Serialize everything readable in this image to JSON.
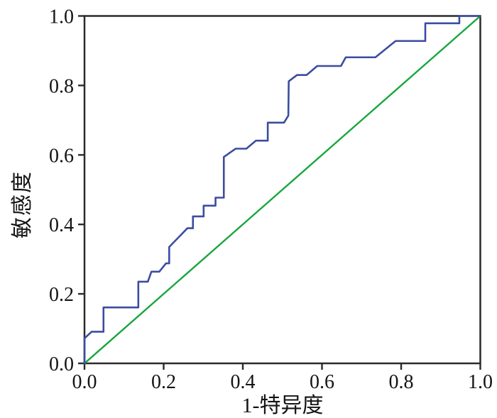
{
  "figure": {
    "background": "#ffffff",
    "axis_color": "#2a2a2c",
    "text_color": "#141414"
  },
  "chart_data": {
    "type": "line",
    "subtype": "roc-curve",
    "title": "",
    "xlabel": "1-特异度",
    "ylabel": "敏感度",
    "xlim": [
      0,
      1
    ],
    "ylim": [
      0,
      1
    ],
    "x_ticks": [
      "0.0",
      "0.2",
      "0.4",
      "0.6",
      "0.8",
      "1.0"
    ],
    "y_ticks": [
      "0.0",
      "0.2",
      "0.4",
      "0.6",
      "0.8",
      "1.0"
    ],
    "grid": false,
    "legend": "none",
    "series": [
      {
        "name": "ROC curve",
        "color": "#3b4da0",
        "points": [
          [
            0.0,
            0.0
          ],
          [
            0.0,
            0.072
          ],
          [
            0.018,
            0.091
          ],
          [
            0.048,
            0.091
          ],
          [
            0.048,
            0.161
          ],
          [
            0.136,
            0.161
          ],
          [
            0.136,
            0.235
          ],
          [
            0.16,
            0.235
          ],
          [
            0.169,
            0.264
          ],
          [
            0.189,
            0.264
          ],
          [
            0.206,
            0.288
          ],
          [
            0.214,
            0.288
          ],
          [
            0.214,
            0.335
          ],
          [
            0.26,
            0.389
          ],
          [
            0.274,
            0.389
          ],
          [
            0.274,
            0.423
          ],
          [
            0.301,
            0.423
          ],
          [
            0.301,
            0.454
          ],
          [
            0.331,
            0.454
          ],
          [
            0.331,
            0.477
          ],
          [
            0.352,
            0.477
          ],
          [
            0.352,
            0.594
          ],
          [
            0.382,
            0.618
          ],
          [
            0.409,
            0.618
          ],
          [
            0.433,
            0.641
          ],
          [
            0.463,
            0.641
          ],
          [
            0.463,
            0.693
          ],
          [
            0.504,
            0.693
          ],
          [
            0.515,
            0.713
          ],
          [
            0.516,
            0.812
          ],
          [
            0.537,
            0.83
          ],
          [
            0.561,
            0.83
          ],
          [
            0.588,
            0.856
          ],
          [
            0.648,
            0.856
          ],
          [
            0.66,
            0.881
          ],
          [
            0.735,
            0.881
          ],
          [
            0.786,
            0.928
          ],
          [
            0.861,
            0.928
          ],
          [
            0.861,
            0.979
          ],
          [
            0.947,
            0.979
          ],
          [
            0.947,
            1.0
          ],
          [
            1.0,
            1.0
          ]
        ]
      },
      {
        "name": "Reference diagonal",
        "color": "#17a63e",
        "points": [
          [
            0.0,
            0.0
          ],
          [
            1.0,
            1.0
          ]
        ]
      }
    ]
  }
}
